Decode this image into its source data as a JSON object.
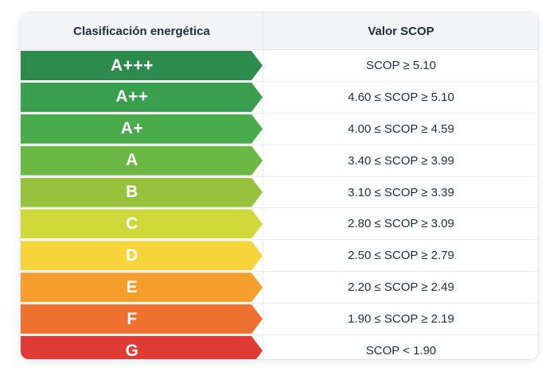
{
  "table": {
    "header": {
      "col1": "Clasificación energética",
      "col2": "Valor SCOP"
    },
    "rows": [
      {
        "class": "A+++",
        "value": "SCOP ≥ 5.10",
        "color": "#2e8b4e"
      },
      {
        "class": "A++",
        "value": "4.60 ≤ SCOP ≥ 5.10",
        "color": "#3a9e4f"
      },
      {
        "class": "A+",
        "value": "4.00 ≤ SCOP ≥ 4.59",
        "color": "#4aab4d"
      },
      {
        "class": "A",
        "value": "3.40 ≤ SCOP ≥ 3.99",
        "color": "#6cb845"
      },
      {
        "class": "B",
        "value": "3.10 ≤ SCOP ≥ 3.39",
        "color": "#97c33c"
      },
      {
        "class": "C",
        "value": "2.80 ≤ SCOP ≥ 3.09",
        "color": "#cfd93a"
      },
      {
        "class": "D",
        "value": "2.50 ≤ SCOP ≥ 2.79",
        "color": "#f7d43a"
      },
      {
        "class": "E",
        "value": "2.20 ≤ SCOP ≥ 2.49",
        "color": "#f59e2e"
      },
      {
        "class": "F",
        "value": "1.90 ≤ SCOP ≥ 2.19",
        "color": "#ee7130"
      },
      {
        "class": "G",
        "value": "SCOP < 1.90",
        "color": "#e03a34"
      }
    ]
  }
}
